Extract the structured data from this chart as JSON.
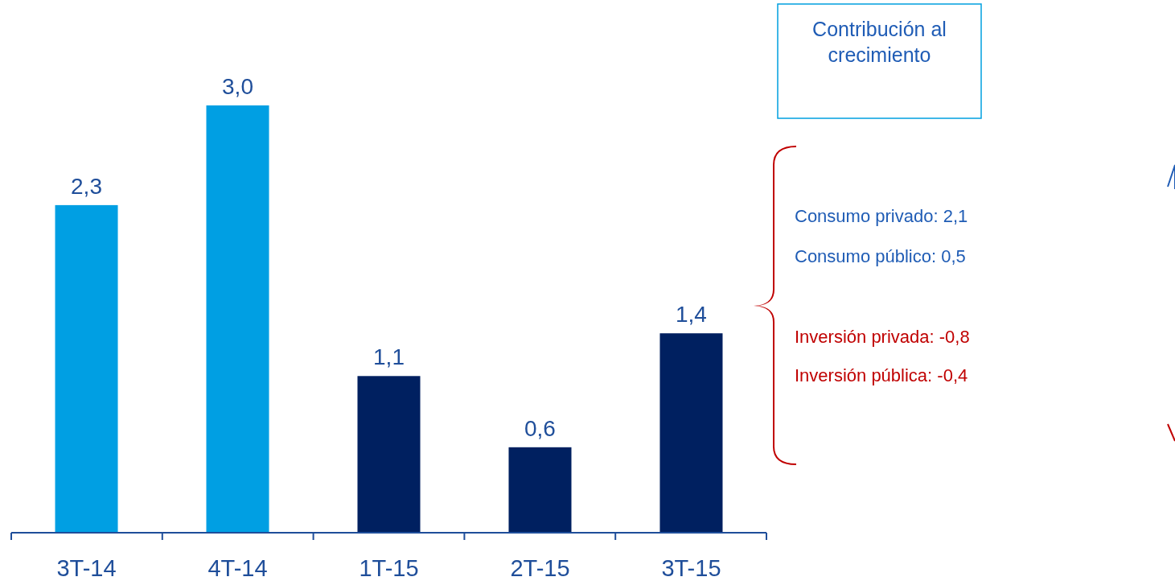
{
  "chart_data": {
    "type": "bar",
    "categories": [
      "3T-14",
      "4T-14",
      "1T-15",
      "2T-15",
      "3T-15"
    ],
    "values": [
      2.3,
      3.0,
      1.1,
      0.6,
      1.4
    ],
    "colors": [
      "#009fe3",
      "#009fe3",
      "#002060",
      "#002060",
      "#002060"
    ],
    "value_labels": [
      "2,3",
      "3,0",
      "1,1",
      "0,6",
      "1,4"
    ],
    "annotations": [
      "Contribución al crecimiento",
      "Consumo privado: 2,1",
      "Consumo público: 0,5",
      "Inversión privada: -0,8",
      "Inversión pública: -0,4"
    ]
  }
}
